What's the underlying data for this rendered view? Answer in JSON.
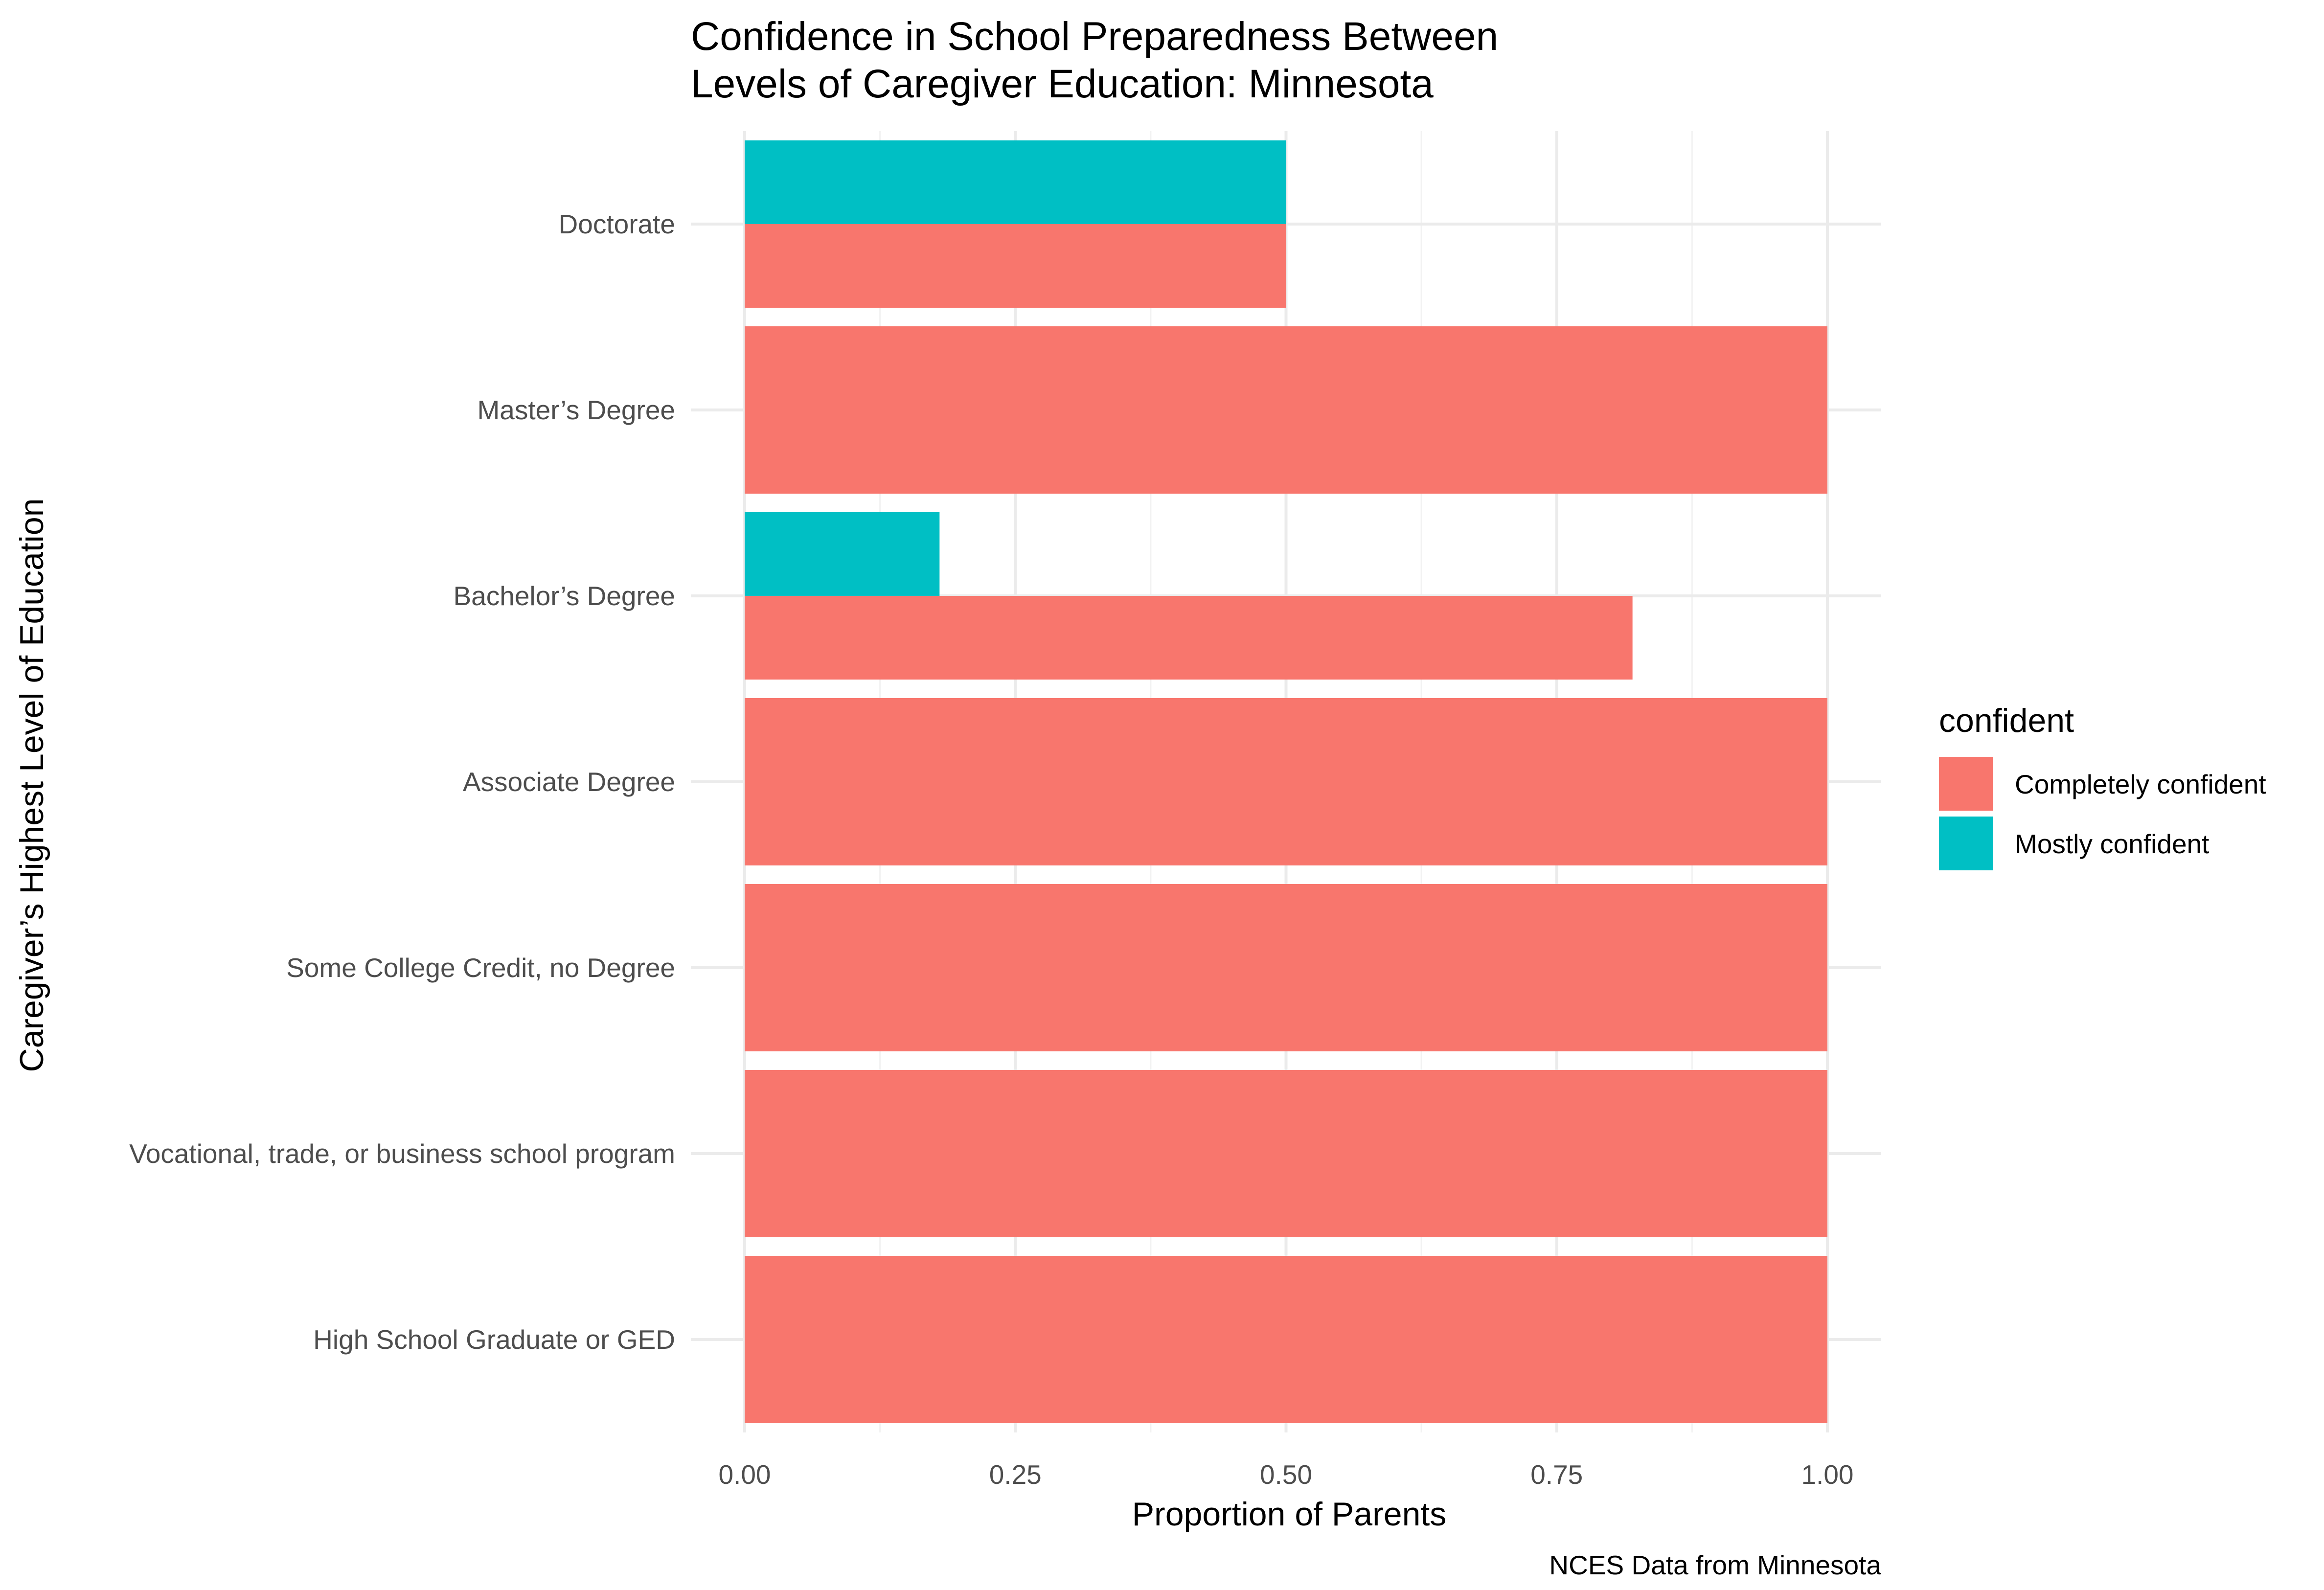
{
  "chart_data": {
    "type": "bar",
    "orientation": "horizontal",
    "stacked": true,
    "title": "Confidence in School Preparedness Between\nLevels of Caregiver Education: Minnesota",
    "xlabel": "Proportion of Parents",
    "ylabel": "Caregiver’s Highest Level of Education",
    "caption": "NCES Data from Minnesota",
    "xlim": [
      0,
      1.05
    ],
    "x_ticks": [
      0,
      0.25,
      0.5,
      0.75,
      1.0
    ],
    "x_tick_labels": [
      "0.00",
      "0.25",
      "0.50",
      "0.75",
      "1.00"
    ],
    "grid": true,
    "categories": [
      "Doctorate",
      "Master’s Degree",
      "Bachelor’s Degree",
      "Associate Degree",
      "Some College Credit, no Degree",
      "Vocational, trade, or business school program",
      "High School Graduate or GED"
    ],
    "series": [
      {
        "name": "Completely confident",
        "color": "#F8766D",
        "values": [
          0.5,
          1.0,
          0.82,
          1.0,
          1.0,
          1.0,
          1.0
        ]
      },
      {
        "name": "Mostly confident",
        "color": "#00BFC4",
        "values": [
          0.5,
          0.0,
          0.18,
          0.0,
          0.0,
          0.0,
          0.0
        ]
      }
    ],
    "legend": {
      "title": "confident",
      "position": "right"
    }
  }
}
